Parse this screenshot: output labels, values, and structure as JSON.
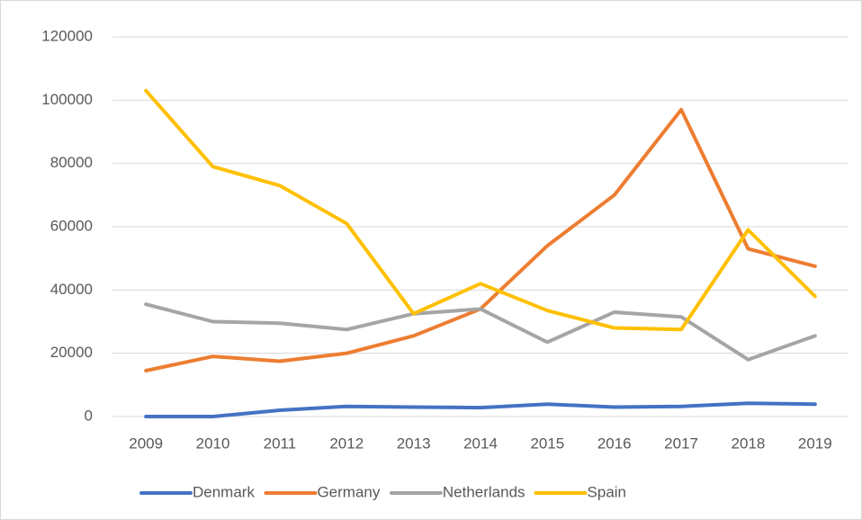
{
  "chart_data": {
    "type": "line",
    "categories": [
      "2009",
      "2010",
      "2011",
      "2012",
      "2013",
      "2014",
      "2015",
      "2016",
      "2017",
      "2018",
      "2019"
    ],
    "series": [
      {
        "name": "Denmark",
        "color": "#4472c4",
        "values": [
          0,
          0,
          2000,
          3200,
          3000,
          2800,
          3900,
          3000,
          3200,
          4200,
          3900
        ]
      },
      {
        "name": "Germany",
        "color": "#ed7d31",
        "values": [
          14500,
          19000,
          17500,
          20000,
          25500,
          34000,
          54000,
          70000,
          97000,
          53000,
          47500
        ]
      },
      {
        "name": "Netherlands",
        "color": "#a5a5a5",
        "values": [
          35500,
          30000,
          29500,
          27500,
          32500,
          34000,
          23500,
          33000,
          31500,
          18000,
          25500
        ]
      },
      {
        "name": "Spain",
        "color": "#ffc000",
        "values": [
          103000,
          79000,
          73000,
          61000,
          32500,
          42000,
          33500,
          28000,
          27500,
          59000,
          38000
        ]
      }
    ],
    "ylim": [
      0,
      120000
    ],
    "yticks": [
      0,
      20000,
      40000,
      60000,
      80000,
      100000,
      120000
    ],
    "grid": true,
    "legend": "bottom"
  }
}
